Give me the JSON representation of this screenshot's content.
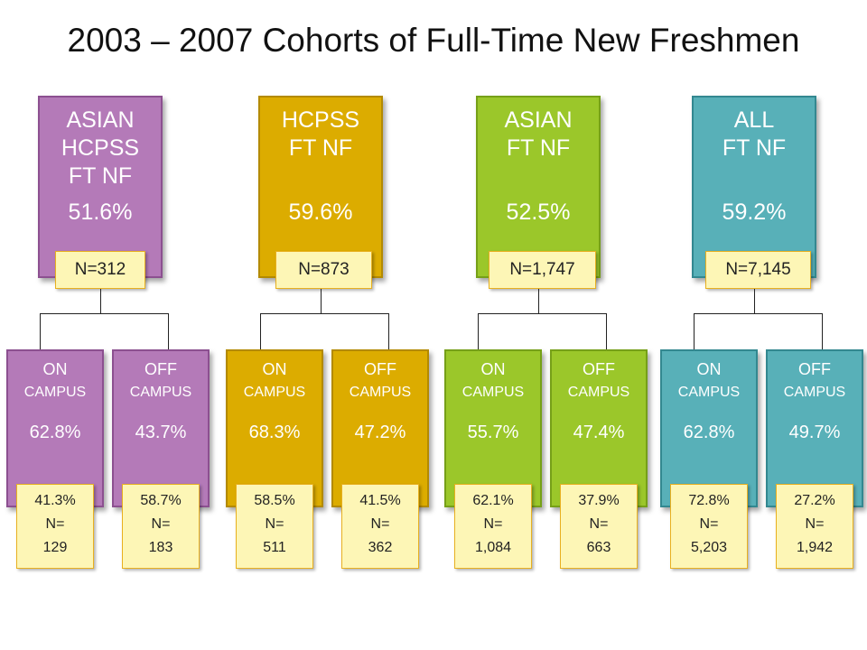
{
  "title": "2003 – 2007 Cohorts of Full-Time New Freshmen",
  "groups": [
    {
      "color": "#b47ab8",
      "border": "#8c5090",
      "parent": {
        "lines": [
          "ASIAN",
          "HCPSS",
          "FT NF"
        ],
        "pct": "51.6%",
        "n": "N=312"
      },
      "on": {
        "line1": "ON",
        "line2": "CAMPUS",
        "pct": "62.8%",
        "badge": [
          "41.3%",
          "N=",
          "129"
        ]
      },
      "off": {
        "line1": "OFF",
        "line2": "CAMPUS",
        "pct": "43.7%",
        "badge": [
          "58.7%",
          "N=",
          "183"
        ]
      }
    },
    {
      "color": "#dcac00",
      "border": "#b38a00",
      "parent": {
        "lines": [
          "HCPSS",
          "FT NF",
          ""
        ],
        "pct": "59.6%",
        "n": "N=873"
      },
      "on": {
        "line1": "ON",
        "line2": "CAMPUS",
        "pct": "68.3%",
        "badge": [
          "58.5%",
          "N=",
          "511"
        ]
      },
      "off": {
        "line1": "OFF",
        "line2": "CAMPUS",
        "pct": "47.2%",
        "badge": [
          "41.5%",
          "N=",
          "362"
        ]
      }
    },
    {
      "color": "#9bc72a",
      "border": "#76a018",
      "parent": {
        "lines": [
          "ASIAN",
          "FT NF",
          ""
        ],
        "pct": "52.5%",
        "n": "N=1,747"
      },
      "on": {
        "line1": "ON",
        "line2": "CAMPUS",
        "pct": "55.7%",
        "badge": [
          "62.1%",
          "N=",
          "1,084"
        ]
      },
      "off": {
        "line1": "OFF",
        "line2": "CAMPUS",
        "pct": "47.4%",
        "badge": [
          "37.9%",
          "N=",
          "663"
        ]
      }
    },
    {
      "color": "#58b0b8",
      "border": "#338890",
      "parent": {
        "lines": [
          "ALL",
          "FT NF",
          ""
        ],
        "pct": "59.2%",
        "n": "N=7,145"
      },
      "on": {
        "line1": "ON",
        "line2": "CAMPUS",
        "pct": "62.8%",
        "badge": [
          "72.8%",
          "N=",
          "5,203"
        ]
      },
      "off": {
        "line1": "OFF",
        "line2": "CAMPUS",
        "pct": "49.7%",
        "badge": [
          "27.2%",
          "N=",
          "1,942"
        ]
      }
    }
  ]
}
